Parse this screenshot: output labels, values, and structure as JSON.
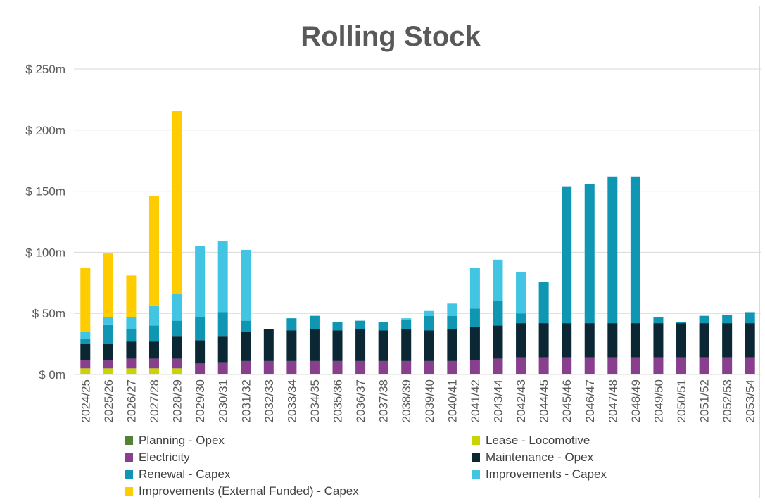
{
  "chart_data": {
    "type": "bar",
    "stacked": true,
    "title": "Rolling Stock",
    "xlabel": "",
    "ylabel": "",
    "ylim": [
      0,
      250
    ],
    "yticks": [
      "$ 0m",
      "$ 50m",
      "$ 100m",
      "$ 150m",
      "$ 200m",
      "$ 250m"
    ],
    "grid": true,
    "legend_position": "bottom",
    "categories": [
      "2024/25",
      "2025/26",
      "2026/27",
      "2027/28",
      "2028/29",
      "2029/30",
      "2030/31",
      "2031/32",
      "2032/33",
      "2033/34",
      "2034/35",
      "2035/36",
      "2036/37",
      "2037/38",
      "2038/39",
      "2039/40",
      "2040/41",
      "2041/42",
      "2043/44",
      "2042/43",
      "2044/45",
      "2045/46",
      "2046/47",
      "2047/48",
      "2048/49",
      "2049/50",
      "2050/51",
      "2051/52",
      "2052/53",
      "2053/54"
    ],
    "series": [
      {
        "name": "Planning - Opex",
        "color": "#548235",
        "values": [
          0,
          0,
          0,
          0,
          0,
          0,
          0,
          0,
          0,
          0,
          0,
          0,
          0,
          0,
          0,
          0,
          0,
          0,
          0,
          0,
          0,
          0,
          0,
          0,
          0,
          0,
          0,
          0,
          0,
          0
        ]
      },
      {
        "name": "Lease - Locomotive",
        "color": "#c9d400",
        "values": [
          5,
          5,
          5,
          5,
          5,
          0,
          0,
          0,
          0,
          0,
          0,
          0,
          0,
          0,
          0,
          0,
          0,
          0,
          0,
          0,
          0,
          0,
          0,
          0,
          0,
          0,
          0,
          0,
          0,
          0
        ]
      },
      {
        "name": "Electricity",
        "color": "#883f8d",
        "values": [
          7,
          7,
          8,
          8,
          8,
          9,
          10,
          11,
          11,
          11,
          11,
          11,
          11,
          11,
          11,
          11,
          11,
          12,
          13,
          14,
          14,
          14,
          14,
          14,
          14,
          14,
          14,
          14,
          14,
          14
        ]
      },
      {
        "name": "Maintenance - Opex",
        "color": "#0b2733",
        "values": [
          13,
          13,
          14,
          14,
          18,
          19,
          21,
          24,
          26,
          25,
          26,
          25,
          26,
          25,
          26,
          25,
          26,
          27,
          27,
          28,
          28,
          28,
          28,
          28,
          28,
          28,
          28,
          28,
          28,
          28
        ]
      },
      {
        "name": "Renewal - Capex",
        "color": "#0e96b3",
        "values": [
          4,
          16,
          10,
          13,
          13,
          19,
          20,
          9,
          0,
          10,
          11,
          7,
          7,
          7,
          8,
          12,
          11,
          15,
          20,
          8,
          34,
          112,
          114,
          120,
          120,
          5,
          1,
          6,
          7,
          9
        ]
      },
      {
        "name": "Improvements - Capex",
        "color": "#41c5e3",
        "values": [
          6,
          6,
          10,
          16,
          22,
          58,
          58,
          58,
          0,
          0,
          0,
          0,
          0,
          0,
          1,
          4,
          10,
          33,
          34,
          34,
          0,
          0,
          0,
          0,
          0,
          0,
          0,
          0,
          0,
          0
        ]
      },
      {
        "name": "Improvements (External Funded) - Capex",
        "color": "#ffcc00",
        "values": [
          52,
          52,
          34,
          90,
          150,
          0,
          0,
          0,
          0,
          0,
          0,
          0,
          0,
          0,
          0,
          0,
          0,
          0,
          0,
          0,
          0,
          0,
          0,
          0,
          0,
          0,
          0,
          0,
          0,
          0
        ]
      }
    ]
  }
}
